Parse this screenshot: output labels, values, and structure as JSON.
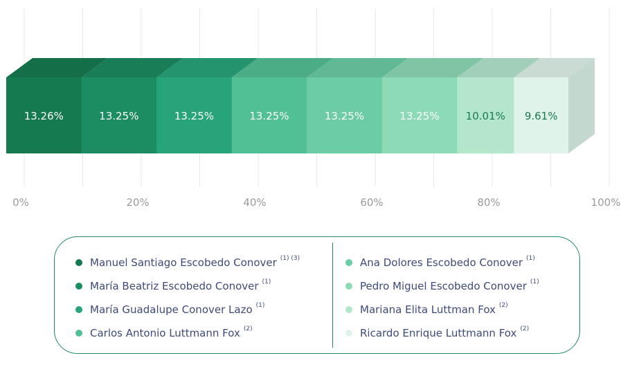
{
  "chart_data": {
    "type": "bar",
    "orientation": "horizontal-stacked-3d",
    "series": [
      {
        "name": "Manuel Santiago Escobedo Conover",
        "note": "(1) (3)",
        "value": 13.26,
        "label": "13.26%",
        "color": "#167a50"
      },
      {
        "name": "María Beatriz Escobedo Conover",
        "note": "(1)",
        "value": 13.25,
        "label": "13.25%",
        "color": "#1c8c62"
      },
      {
        "name": "María Guadalupe Conover Lazo",
        "note": "(1)",
        "value": 13.25,
        "label": "13.25%",
        "color": "#27a47a"
      },
      {
        "name": "Carlos Antonio Luttmann Fox",
        "note": "(2)",
        "value": 13.25,
        "label": "13.25%",
        "color": "#52c095"
      },
      {
        "name": "Ana Dolores Escobedo Conover",
        "note": "(1)",
        "value": 13.25,
        "label": "13.25%",
        "color": "#6ccca5"
      },
      {
        "name": "Pedro Miguel Escobedo Conover",
        "note": "(1)",
        "value": 13.25,
        "label": "13.25%",
        "color": "#8ddbb6"
      },
      {
        "name": "Mariana Elita Luttman Fox",
        "note": "(2)",
        "value": 10.01,
        "label": "10.01%",
        "color": "#b4e6ce"
      },
      {
        "name": "Ricardo Enrique Luttmann Fox",
        "note": "(2)",
        "value": 9.61,
        "label": "9.61%",
        "color": "#dff3ea"
      }
    ],
    "label_colors": [
      "#ffffff",
      "#ffffff",
      "#ffffff",
      "#ffffff",
      "#ffffff",
      "#ffffff",
      "#1a7a4c",
      "#1a7a4c"
    ],
    "xticks": [
      "0%",
      "20%",
      "40%",
      "60%",
      "80%",
      "100%"
    ],
    "xlim": [
      0,
      100
    ],
    "grid": true,
    "legend_position": "bottom",
    "side_color": "#c3d8cf"
  }
}
